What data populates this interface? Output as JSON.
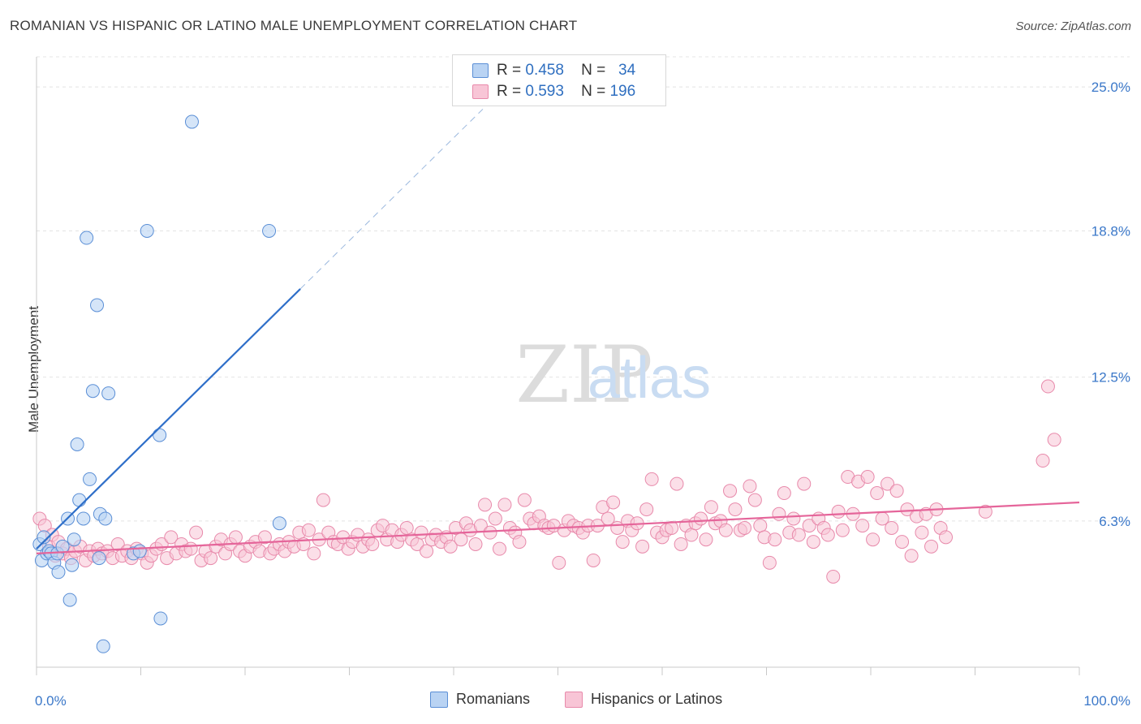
{
  "title": "ROMANIAN VS HISPANIC OR LATINO MALE UNEMPLOYMENT CORRELATION CHART",
  "source": "Source: ZipAtlas.com",
  "watermark": {
    "zip": "ZIP",
    "atlas": "atlas"
  },
  "legend_top": {
    "rows": [
      {
        "r_label": "R =",
        "r_value": "0.458",
        "n_label": "N =",
        "n_value": "34"
      },
      {
        "r_label": "R =",
        "r_value": "0.593",
        "n_label": "N =",
        "n_value": "196"
      }
    ]
  },
  "legend_bottom": [
    "Romanians",
    "Hispanics or Latinos"
  ],
  "colors": {
    "blue_fill": "#b9d3f3",
    "blue_stroke": "#5b8fd6",
    "blue_line": "#2f6fc9",
    "pink_fill": "#f8c5d6",
    "pink_stroke": "#e88aab",
    "pink_line": "#e5659a",
    "axis_text": "#3b78c9",
    "grid": "#e4e4e4"
  },
  "chart_data": {
    "type": "scatter",
    "title": "ROMANIAN VS HISPANIC OR LATINO MALE UNEMPLOYMENT CORRELATION CHART",
    "xlabel": "",
    "ylabel": "Male Unemployment",
    "xlim": [
      0,
      100
    ],
    "ylim": [
      0,
      26.3
    ],
    "x_tick_labels": [
      "0.0%",
      "100.0%"
    ],
    "y_ticks": [
      6.3,
      12.5,
      18.8,
      25.0
    ],
    "y_tick_labels": [
      "6.3%",
      "12.5%",
      "18.8%",
      "25.0%"
    ],
    "grid": true,
    "legend_placement": "bottom",
    "series": [
      {
        "name": "Romanians",
        "R": 0.458,
        "N": 34,
        "trend": {
          "x0": 0.0,
          "y0": 5.1,
          "x1": 25.3,
          "y1": 16.3,
          "dash_to_x": 42.8
        },
        "points": [
          [
            0.3,
            5.3
          ],
          [
            0.5,
            4.6
          ],
          [
            0.7,
            5.6
          ],
          [
            1.0,
            4.9
          ],
          [
            1.2,
            5.0
          ],
          [
            1.4,
            4.9
          ],
          [
            1.7,
            4.5
          ],
          [
            2.0,
            4.9
          ],
          [
            2.1,
            4.1
          ],
          [
            2.5,
            5.2
          ],
          [
            3.0,
            6.4
          ],
          [
            3.2,
            2.9
          ],
          [
            3.4,
            4.4
          ],
          [
            3.6,
            5.5
          ],
          [
            3.9,
            9.6
          ],
          [
            4.1,
            7.2
          ],
          [
            4.5,
            6.4
          ],
          [
            4.8,
            18.5
          ],
          [
            5.1,
            8.1
          ],
          [
            5.4,
            11.9
          ],
          [
            5.8,
            15.6
          ],
          [
            6.0,
            4.7
          ],
          [
            6.1,
            6.6
          ],
          [
            6.4,
            0.9
          ],
          [
            6.6,
            6.4
          ],
          [
            6.9,
            11.8
          ],
          [
            9.3,
            4.9
          ],
          [
            9.9,
            5.0
          ],
          [
            10.6,
            18.8
          ],
          [
            11.8,
            10.0
          ],
          [
            11.9,
            2.1
          ],
          [
            14.9,
            23.5
          ],
          [
            22.3,
            18.8
          ],
          [
            23.3,
            6.2
          ]
        ]
      },
      {
        "name": "Hispanics or Latinos",
        "R": 0.593,
        "N": 196,
        "trend": {
          "x0": 0.0,
          "y0": 4.9,
          "x1": 100.0,
          "y1": 7.1
        },
        "points": [
          [
            0.3,
            6.4
          ],
          [
            0.8,
            6.1
          ],
          [
            1.2,
            5.2
          ],
          [
            1.5,
            5.7
          ],
          [
            1.8,
            4.8
          ],
          [
            2.1,
            5.4
          ],
          [
            2.5,
            4.9
          ],
          [
            2.9,
            5.1
          ],
          [
            3.3,
            4.7
          ],
          [
            3.7,
            5.0
          ],
          [
            4.2,
            5.2
          ],
          [
            4.7,
            4.6
          ],
          [
            5.1,
            5.0
          ],
          [
            5.5,
            4.8
          ],
          [
            5.9,
            5.1
          ],
          [
            6.3,
            4.9
          ],
          [
            6.8,
            5.0
          ],
          [
            7.3,
            4.7
          ],
          [
            7.8,
            5.3
          ],
          [
            8.2,
            4.8
          ],
          [
            8.7,
            5.0
          ],
          [
            9.1,
            4.7
          ],
          [
            9.6,
            5.1
          ],
          [
            10.1,
            4.9
          ],
          [
            10.6,
            4.5
          ],
          [
            11.0,
            4.8
          ],
          [
            11.5,
            5.1
          ],
          [
            12.0,
            5.3
          ],
          [
            12.5,
            4.7
          ],
          [
            12.9,
            5.6
          ],
          [
            13.4,
            4.9
          ],
          [
            13.9,
            5.3
          ],
          [
            14.3,
            5.0
          ],
          [
            14.8,
            5.1
          ],
          [
            15.3,
            5.8
          ],
          [
            15.8,
            4.6
          ],
          [
            16.2,
            5.0
          ],
          [
            16.7,
            4.7
          ],
          [
            17.2,
            5.2
          ],
          [
            17.7,
            5.5
          ],
          [
            18.1,
            4.9
          ],
          [
            18.6,
            5.3
          ],
          [
            19.1,
            5.6
          ],
          [
            19.5,
            5.0
          ],
          [
            20.0,
            4.8
          ],
          [
            20.5,
            5.2
          ],
          [
            21.0,
            5.4
          ],
          [
            21.4,
            5.0
          ],
          [
            21.9,
            5.6
          ],
          [
            22.4,
            4.9
          ],
          [
            22.8,
            5.1
          ],
          [
            23.3,
            5.3
          ],
          [
            23.8,
            5.0
          ],
          [
            24.2,
            5.4
          ],
          [
            24.7,
            5.2
          ],
          [
            25.2,
            5.8
          ],
          [
            25.6,
            5.3
          ],
          [
            26.1,
            5.9
          ],
          [
            26.6,
            4.9
          ],
          [
            27.1,
            5.5
          ],
          [
            27.5,
            7.2
          ],
          [
            28.0,
            5.8
          ],
          [
            28.5,
            5.4
          ],
          [
            28.9,
            5.3
          ],
          [
            29.4,
            5.6
          ],
          [
            29.9,
            5.1
          ],
          [
            30.3,
            5.4
          ],
          [
            30.8,
            5.7
          ],
          [
            31.3,
            5.2
          ],
          [
            31.8,
            5.5
          ],
          [
            32.2,
            5.3
          ],
          [
            32.7,
            5.9
          ],
          [
            33.2,
            6.1
          ],
          [
            33.6,
            5.5
          ],
          [
            34.1,
            5.9
          ],
          [
            34.6,
            5.4
          ],
          [
            35.0,
            5.7
          ],
          [
            35.5,
            6.0
          ],
          [
            36.0,
            5.5
          ],
          [
            36.5,
            5.3
          ],
          [
            36.9,
            5.8
          ],
          [
            37.4,
            5.0
          ],
          [
            37.9,
            5.5
          ],
          [
            38.3,
            5.7
          ],
          [
            38.8,
            5.4
          ],
          [
            39.3,
            5.6
          ],
          [
            39.7,
            5.2
          ],
          [
            40.2,
            6.0
          ],
          [
            40.7,
            5.5
          ],
          [
            41.2,
            6.2
          ],
          [
            41.6,
            5.9
          ],
          [
            42.1,
            5.3
          ],
          [
            42.6,
            6.1
          ],
          [
            43.0,
            7.0
          ],
          [
            43.5,
            5.8
          ],
          [
            44.0,
            6.4
          ],
          [
            44.4,
            5.1
          ],
          [
            44.9,
            7.0
          ],
          [
            45.4,
            6.0
          ],
          [
            45.9,
            5.8
          ],
          [
            46.3,
            5.4
          ],
          [
            46.8,
            7.2
          ],
          [
            47.3,
            6.4
          ],
          [
            47.7,
            6.2
          ],
          [
            48.2,
            6.5
          ],
          [
            48.7,
            6.1
          ],
          [
            49.1,
            6.0
          ],
          [
            49.6,
            6.1
          ],
          [
            50.1,
            4.5
          ],
          [
            50.6,
            5.9
          ],
          [
            51.0,
            6.3
          ],
          [
            51.5,
            6.1
          ],
          [
            52.0,
            6.0
          ],
          [
            52.4,
            5.8
          ],
          [
            52.9,
            6.1
          ],
          [
            53.4,
            4.6
          ],
          [
            53.8,
            6.1
          ],
          [
            54.3,
            6.9
          ],
          [
            54.8,
            6.4
          ],
          [
            55.3,
            7.1
          ],
          [
            55.7,
            6.0
          ],
          [
            56.2,
            5.4
          ],
          [
            56.7,
            6.3
          ],
          [
            57.1,
            5.9
          ],
          [
            57.6,
            6.2
          ],
          [
            58.1,
            5.2
          ],
          [
            58.5,
            6.8
          ],
          [
            59.0,
            8.1
          ],
          [
            59.5,
            5.8
          ],
          [
            60.0,
            5.6
          ],
          [
            60.4,
            5.9
          ],
          [
            60.9,
            6.0
          ],
          [
            61.4,
            7.9
          ],
          [
            61.8,
            5.3
          ],
          [
            62.3,
            6.1
          ],
          [
            62.8,
            5.7
          ],
          [
            63.2,
            6.2
          ],
          [
            63.7,
            6.4
          ],
          [
            64.2,
            5.5
          ],
          [
            64.7,
            6.9
          ],
          [
            65.1,
            6.2
          ],
          [
            65.6,
            6.3
          ],
          [
            66.1,
            5.9
          ],
          [
            66.5,
            7.6
          ],
          [
            67.0,
            6.8
          ],
          [
            67.5,
            5.9
          ],
          [
            67.9,
            6.0
          ],
          [
            68.4,
            7.8
          ],
          [
            68.9,
            7.2
          ],
          [
            69.4,
            6.1
          ],
          [
            69.8,
            5.6
          ],
          [
            70.3,
            4.5
          ],
          [
            70.8,
            5.5
          ],
          [
            71.2,
            6.6
          ],
          [
            71.7,
            7.5
          ],
          [
            72.2,
            5.8
          ],
          [
            72.6,
            6.4
          ],
          [
            73.1,
            5.7
          ],
          [
            73.6,
            7.9
          ],
          [
            74.1,
            6.1
          ],
          [
            74.5,
            5.4
          ],
          [
            75.0,
            6.4
          ],
          [
            75.5,
            6.0
          ],
          [
            75.9,
            5.7
          ],
          [
            76.4,
            3.9
          ],
          [
            76.9,
            6.7
          ],
          [
            77.3,
            5.9
          ],
          [
            77.8,
            8.2
          ],
          [
            78.3,
            6.6
          ],
          [
            78.8,
            8.0
          ],
          [
            79.2,
            6.1
          ],
          [
            79.7,
            8.2
          ],
          [
            80.2,
            5.5
          ],
          [
            80.6,
            7.5
          ],
          [
            81.1,
            6.4
          ],
          [
            81.6,
            7.9
          ],
          [
            82.0,
            6.0
          ],
          [
            82.5,
            7.6
          ],
          [
            83.0,
            5.4
          ],
          [
            83.5,
            6.8
          ],
          [
            83.9,
            4.8
          ],
          [
            84.4,
            6.5
          ],
          [
            84.9,
            5.8
          ],
          [
            85.3,
            6.6
          ],
          [
            85.8,
            5.2
          ],
          [
            86.3,
            6.8
          ],
          [
            86.7,
            6.0
          ],
          [
            87.2,
            5.6
          ],
          [
            97.0,
            12.1
          ],
          [
            97.6,
            9.8
          ],
          [
            96.5,
            8.9
          ],
          [
            91.0,
            6.7
          ]
        ]
      }
    ]
  }
}
